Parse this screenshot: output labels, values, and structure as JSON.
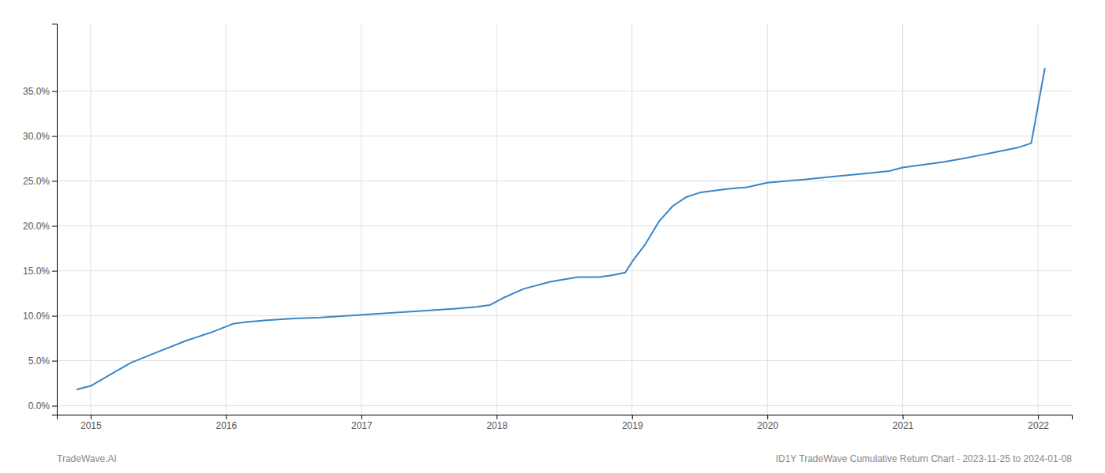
{
  "chart_data": {
    "type": "line",
    "x": [
      2014.9,
      2015.0,
      2015.15,
      2015.3,
      2015.5,
      2015.7,
      2015.9,
      2016.05,
      2016.15,
      2016.3,
      2016.5,
      2016.7,
      2016.9,
      2017.1,
      2017.3,
      2017.5,
      2017.7,
      2017.85,
      2017.95,
      2018.05,
      2018.2,
      2018.4,
      2018.6,
      2018.75,
      2018.85,
      2018.95,
      2019.0,
      2019.1,
      2019.2,
      2019.3,
      2019.4,
      2019.5,
      2019.6,
      2019.7,
      2019.85,
      2020.0,
      2020.15,
      2020.3,
      2020.5,
      2020.7,
      2020.9,
      2021.0,
      2021.15,
      2021.3,
      2021.45,
      2021.55,
      2021.65,
      2021.75,
      2021.85,
      2021.95,
      2022.05
    ],
    "values": [
      0.018,
      0.022,
      0.035,
      0.048,
      0.06,
      0.072,
      0.082,
      0.091,
      0.093,
      0.095,
      0.097,
      0.098,
      0.1,
      0.102,
      0.104,
      0.106,
      0.108,
      0.11,
      0.112,
      0.12,
      0.13,
      0.138,
      0.143,
      0.143,
      0.145,
      0.148,
      0.16,
      0.18,
      0.205,
      0.222,
      0.232,
      0.237,
      0.239,
      0.241,
      0.243,
      0.248,
      0.25,
      0.252,
      0.255,
      0.258,
      0.261,
      0.265,
      0.268,
      0.271,
      0.275,
      0.278,
      0.281,
      0.284,
      0.287,
      0.292,
      0.375
    ],
    "color": "#3a86c8",
    "xlim": [
      2014.75,
      2022.25
    ],
    "ylim": [
      -0.01,
      0.425
    ],
    "xticks": [
      2015,
      2016,
      2017,
      2018,
      2019,
      2020,
      2021,
      2022
    ],
    "yticks": [
      {
        "value": 0.0,
        "label": "0.0%"
      },
      {
        "value": 0.05,
        "label": "5.0%"
      },
      {
        "value": 0.1,
        "label": "10.0%"
      },
      {
        "value": 0.15,
        "label": "15.0%"
      },
      {
        "value": 0.2,
        "label": "20.0%"
      },
      {
        "value": 0.25,
        "label": "25.0%"
      },
      {
        "value": 0.3,
        "label": "30.0%"
      },
      {
        "value": 0.35,
        "label": "35.0%"
      }
    ],
    "grid": true,
    "annotations": [
      "TradeWave.AI",
      "ID1Y TradeWave Cumulative Return Chart - 2023-11-25 to 2024-01-08"
    ]
  }
}
